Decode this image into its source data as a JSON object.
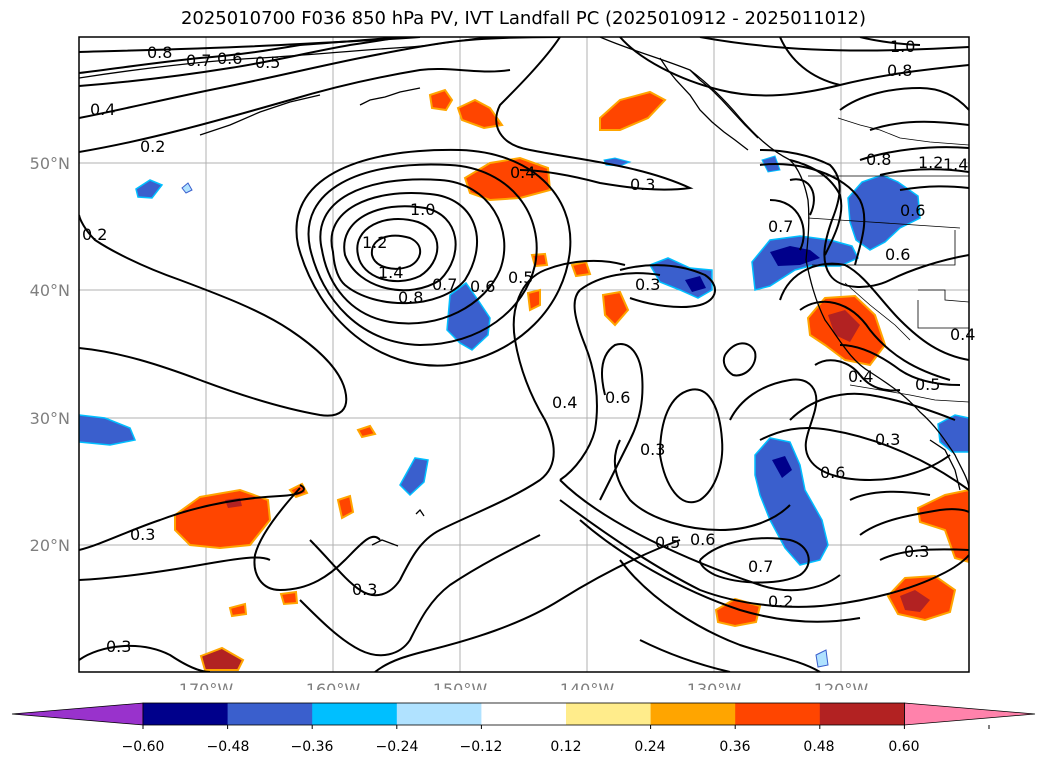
{
  "title": "2025010700 F036 850 hPa PV, IVT Landfall PC (2025010912 - 2025011012)",
  "lat_labels": [
    "50°N",
    "40°N",
    "30°N",
    "20°N"
  ],
  "lon_labels": [
    "170°W",
    "160°W",
    "150°W",
    "140°W",
    "130°W",
    "120°W"
  ],
  "contour_labels": [
    "0.8",
    "0.7",
    "0.6",
    "0.5",
    "1.0",
    "0.8",
    "0.4",
    "0.2",
    "0.2",
    "0.4",
    "0.3",
    "1.0",
    "1.2",
    "1.4",
    "0.8",
    "0.7",
    "0.6",
    "0.5",
    "0.3",
    "0.4",
    "0.6",
    "0.3",
    "0.6",
    "0.5",
    "0.7",
    "0.2",
    "0.3",
    "0.3",
    "0.3",
    "0.7",
    "0.6",
    "0.8",
    "1.2",
    "1.4",
    "0.6",
    "0.4",
    "0.4",
    "0.5",
    "0.3",
    "0.6",
    "0.3"
  ],
  "colorbar": {
    "colors": [
      "#9932cc",
      "#00008b",
      "#3a5fcd",
      "#00bfff",
      "#b0e2ff",
      "#ffffff",
      "#ffec8b",
      "#ffa500",
      "#ff4500",
      "#b22222",
      "#ff82ab"
    ],
    "tick_labels": [
      "−0.60",
      "−0.48",
      "−0.36",
      "−0.24",
      "−0.12",
      "0.12",
      "0.24",
      "0.36",
      "0.48",
      "0.60"
    ]
  }
}
